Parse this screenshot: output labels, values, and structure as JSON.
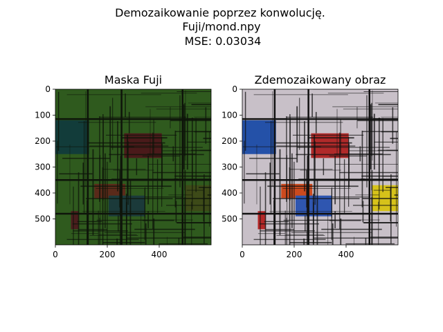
{
  "figure": {
    "suptitle": [
      "Demozaikowanie poprzez konwolucję.",
      "Fuji/mond.npy",
      "MSE: 0.03034"
    ]
  },
  "chart_data": [
    {
      "type": "heatmap",
      "title": "Maska Fuji",
      "xlabel": "",
      "ylabel": "",
      "xlim": [
        0,
        600
      ],
      "ylim": [
        600,
        0
      ],
      "x_ticks": [
        0,
        200,
        400
      ],
      "y_ticks": [
        0,
        100,
        200,
        300,
        400,
        500
      ],
      "grid": false,
      "colors": {
        "base": "#2f5a1e",
        "line": "#0e140a"
      },
      "blocks": [
        {
          "x": [
            0,
            130
          ],
          "y": [
            120,
            250
          ],
          "color": "#123c3a"
        },
        {
          "x": [
            265,
            410
          ],
          "y": [
            170,
            265
          ],
          "color": "#4a1a1a"
        },
        {
          "x": [
            150,
            270
          ],
          "y": [
            365,
            420
          ],
          "color": "#5a2a1a"
        },
        {
          "x": [
            205,
            345
          ],
          "y": [
            410,
            490
          ],
          "color": "#1b3a3a"
        },
        {
          "x": [
            500,
            600
          ],
          "y": [
            370,
            470
          ],
          "color": "#3d4a18"
        },
        {
          "x": [
            60,
            90
          ],
          "y": [
            470,
            540
          ],
          "color": "#4a1d1d"
        }
      ]
    },
    {
      "type": "heatmap",
      "title": "Zdemozaikowany obraz",
      "xlabel": "",
      "ylabel": "",
      "xlim": [
        0,
        600
      ],
      "ylim": [
        600,
        0
      ],
      "x_ticks": [
        0,
        200,
        400
      ],
      "y_ticks": [
        0,
        100,
        200,
        300,
        400,
        500
      ],
      "grid": false,
      "colors": {
        "base": "#c8c0c8",
        "line": "#111111"
      },
      "blocks": [
        {
          "x": [
            0,
            130
          ],
          "y": [
            120,
            250
          ],
          "color": "#2451a8"
        },
        {
          "x": [
            265,
            410
          ],
          "y": [
            170,
            265
          ],
          "color": "#b02a2a"
        },
        {
          "x": [
            150,
            270
          ],
          "y": [
            365,
            420
          ],
          "color": "#cc4a1e"
        },
        {
          "x": [
            205,
            345
          ],
          "y": [
            410,
            490
          ],
          "color": "#2f56b0"
        },
        {
          "x": [
            500,
            600
          ],
          "y": [
            370,
            470
          ],
          "color": "#d6c21a"
        },
        {
          "x": [
            60,
            90
          ],
          "y": [
            470,
            540
          ],
          "color": "#b42828"
        }
      ]
    }
  ]
}
